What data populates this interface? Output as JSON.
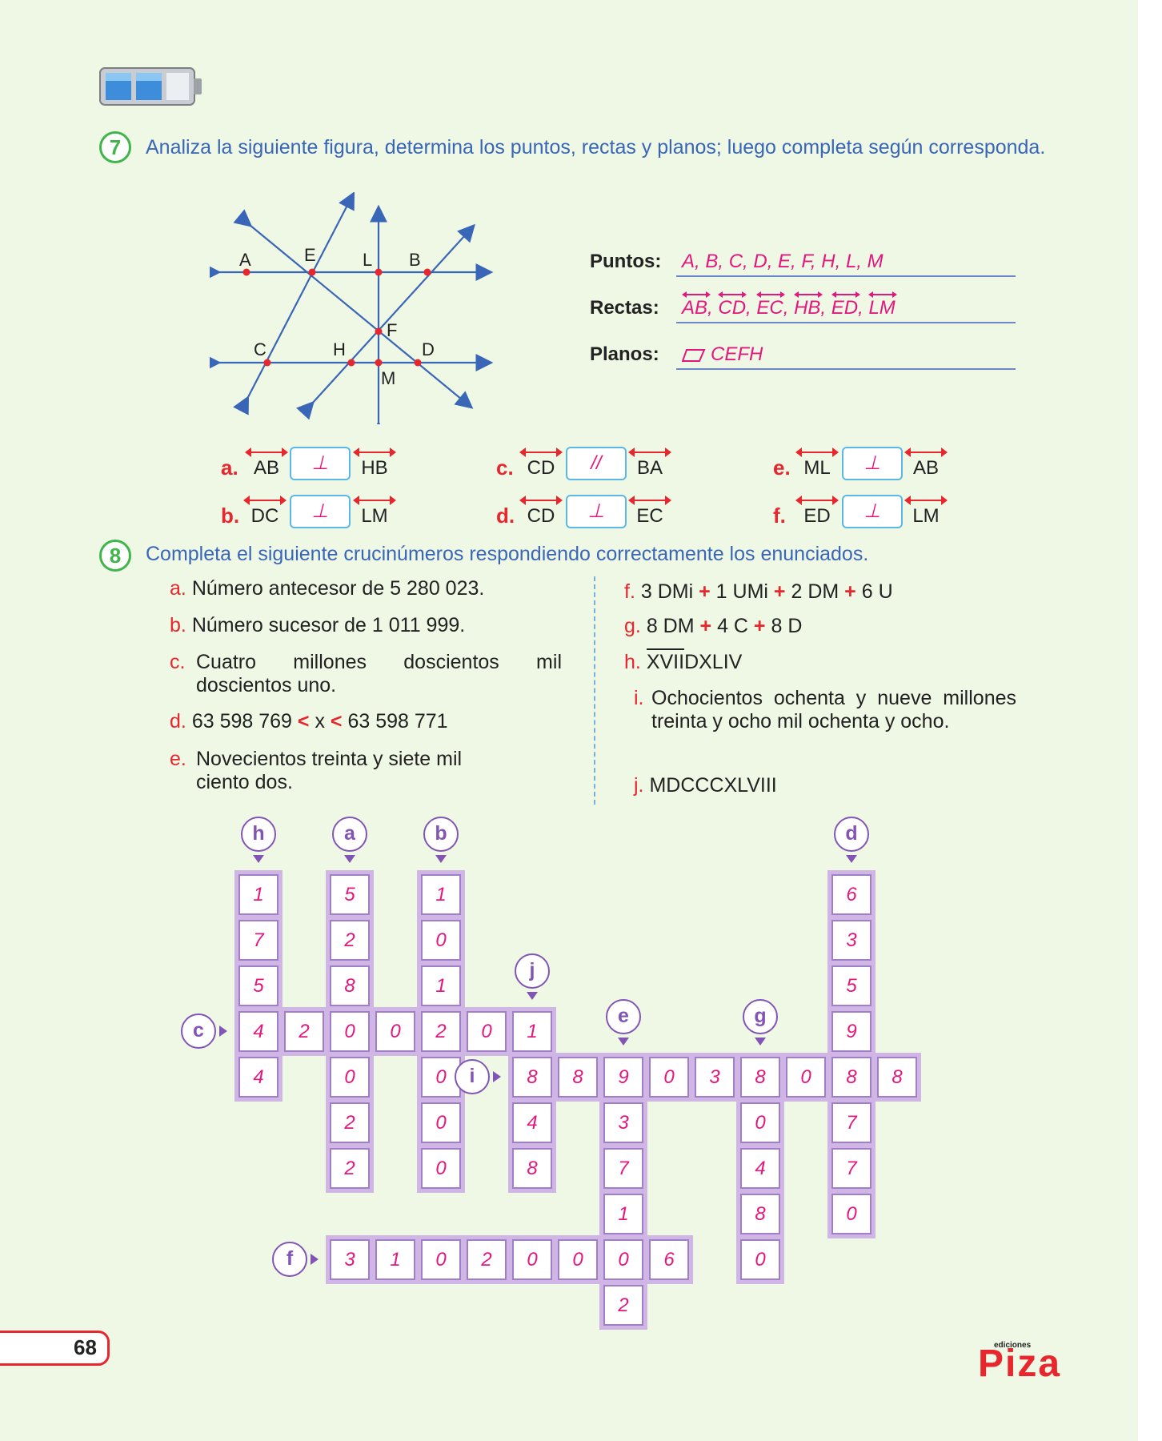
{
  "page_number": "68",
  "brand": "Piza",
  "brand_small": "ediciones",
  "ex7": {
    "number": "7",
    "instruction": "Analiza la siguiente figura, determina los puntos, rectas y planos; luego completa según corresponda.",
    "points_label": "Puntos:",
    "points_answer": "A, B, C, D, E, F, H, L, M",
    "lines_label": "Rectas:",
    "lines_answer": [
      "AB",
      "CD",
      "EC",
      "HB",
      "ED",
      "LM"
    ],
    "planes_label": "Planos:",
    "planes_answer": "CEFH",
    "figure_labels": {
      "A": "A",
      "E": "E",
      "L": "L",
      "B": "B",
      "F": "F",
      "C": "C",
      "H": "H",
      "D": "D",
      "M": "M"
    },
    "relations": [
      {
        "letter": "a.",
        "left": "AB",
        "symbol": "⊥",
        "right": "HB"
      },
      {
        "letter": "b.",
        "left": "DC",
        "symbol": "⊥",
        "right": "LM"
      },
      {
        "letter": "c.",
        "left": "CD",
        "symbol": "//",
        "right": "BA"
      },
      {
        "letter": "d.",
        "left": "CD",
        "symbol": "⊥",
        "right": "EC"
      },
      {
        "letter": "e.",
        "left": "ML",
        "symbol": "⊥",
        "right": "AB"
      },
      {
        "letter": "f.",
        "left": "ED",
        "symbol": "⊥",
        "right": "LM"
      }
    ]
  },
  "ex8": {
    "number": "8",
    "instruction": "Completa el siguiente crucinúmeros respondiendo correctamente los enunciados.",
    "clues_left": [
      {
        "letter": "a.",
        "text": "Número antecesor de 5 280 023."
      },
      {
        "letter": "b.",
        "text": "Número sucesor de 1 011 999."
      },
      {
        "letter": "c.",
        "text": "Cuatro millones doscientos mil doscientos uno."
      },
      {
        "letter": "d.",
        "text_a": "63 598 769",
        "op1": "<",
        "text_b": "x",
        "op2": "<",
        "text_c": "63 598 771"
      },
      {
        "letter": "e.",
        "text": "Novecientos treinta y siete mil ciento dos."
      }
    ],
    "clues_right": [
      {
        "letter": "f.",
        "parts": [
          "3 DMi",
          "+",
          "1 UMi",
          "+",
          "2 DM",
          "+",
          "6 U"
        ]
      },
      {
        "letter": "g.",
        "parts": [
          "8 DM",
          "+",
          "4 C",
          "+",
          "8 D"
        ]
      },
      {
        "letter": "h.",
        "over": "XVII",
        "rest": "DXLIV"
      },
      {
        "letter": "i.",
        "text": "Ochocientos ochenta y nueve millones treinta y ocho mil ochenta y ocho."
      },
      {
        "letter": "j.",
        "text": "MDCCCXLVIII"
      }
    ],
    "bubbles": {
      "h": "h",
      "a": "a",
      "b": "b",
      "d": "d",
      "j": "j",
      "e": "e",
      "g": "g",
      "c": "c",
      "i": "i",
      "f": "f"
    },
    "grid": {
      "h": [
        "1",
        "7",
        "5",
        "4",
        "4"
      ],
      "a": [
        "5",
        "2",
        "8",
        "0",
        "0",
        "2",
        "2"
      ],
      "b": [
        "1",
        "0",
        "1",
        "2",
        "0",
        "0",
        "0"
      ],
      "d": [
        "6",
        "3",
        "5",
        "9",
        "8",
        "7",
        "7",
        "0"
      ],
      "c": [
        "4",
        "2",
        "0",
        "0",
        "2",
        "0",
        "1"
      ],
      "j": [
        "1",
        "8",
        "4",
        "8"
      ],
      "i": [
        "8",
        "8",
        "9",
        "0",
        "3",
        "8",
        "0",
        "8",
        "8"
      ],
      "e": [
        "9",
        "3",
        "7",
        "1",
        "0",
        "2"
      ],
      "g": [
        "8",
        "0",
        "4",
        "8",
        "0"
      ],
      "f": [
        "3",
        "1",
        "0",
        "2",
        "0",
        "0",
        "0",
        "6"
      ]
    }
  }
}
